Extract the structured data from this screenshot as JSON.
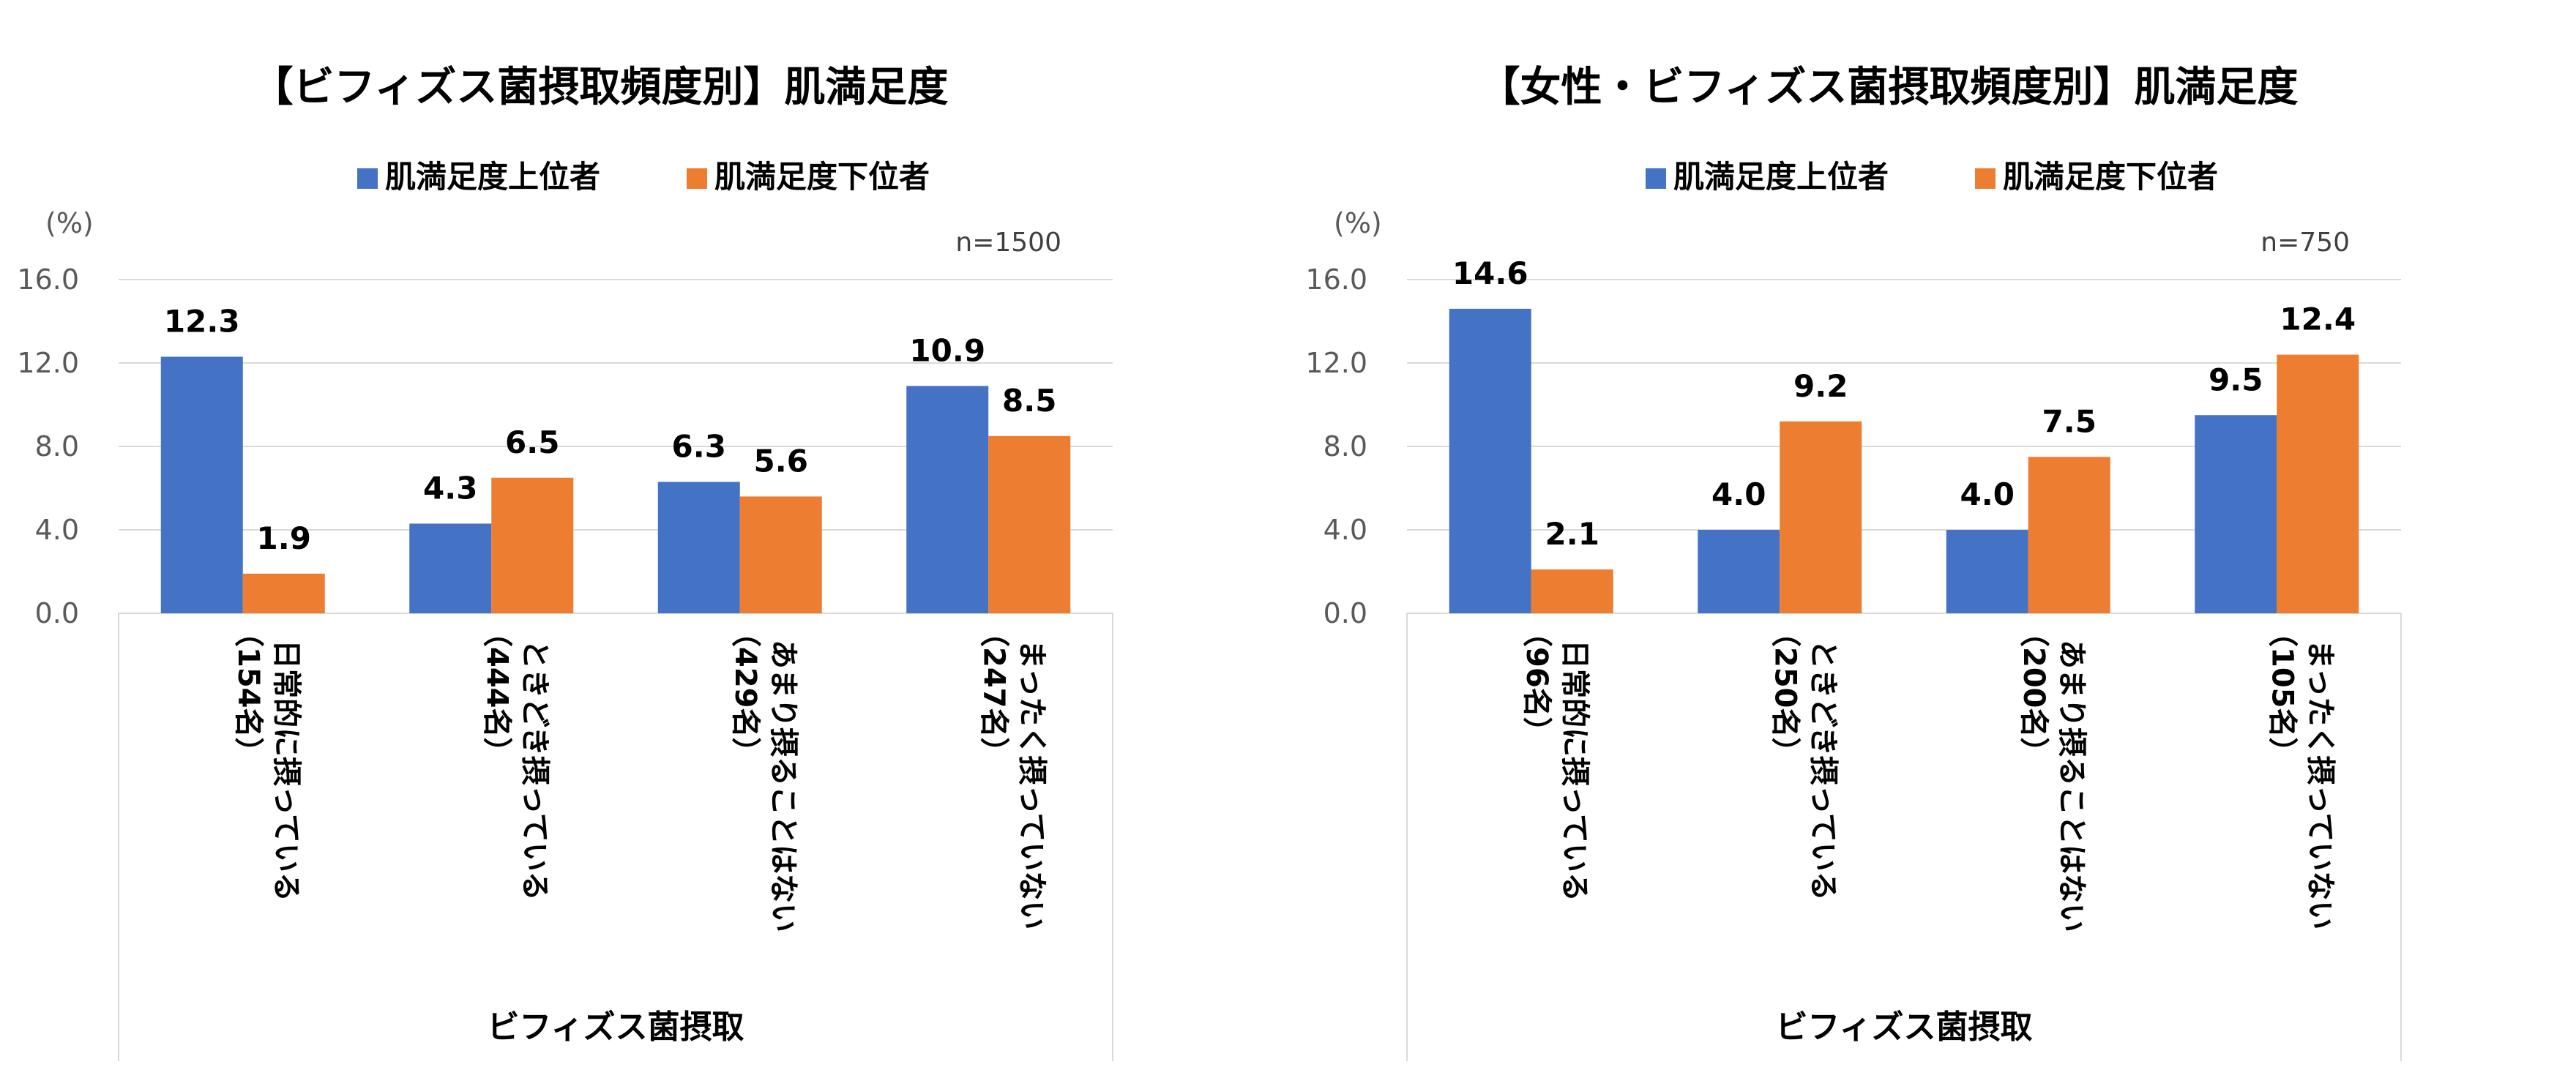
{
  "chart_data": [
    {
      "type": "bar",
      "title": "【ビフィズス菌摂取頻度別】肌満足度",
      "unit": "(%)",
      "note": "n=1500",
      "xlabel": "ビフィズス菌摂取",
      "ylim": [
        0,
        16
      ],
      "yticks": [
        "0.0",
        "4.0",
        "8.0",
        "12.0",
        "16.0"
      ],
      "grid": true,
      "legend_position": "top",
      "categories": [
        {
          "label": "日常的に摂っている",
          "count": "（154名）"
        },
        {
          "label": "ときどき摂っている",
          "count": "（444名）"
        },
        {
          "label": "あまり摂ることはない",
          "count": "（429名）"
        },
        {
          "label": "まったく摂っていない",
          "count": "（247名）"
        }
      ],
      "series": [
        {
          "name": "肌満足度上位者",
          "color": "#4472c4",
          "values": [
            12.3,
            4.3,
            6.3,
            10.9
          ]
        },
        {
          "name": "肌満足度下位者",
          "color": "#ed7d31",
          "values": [
            1.9,
            6.5,
            5.6,
            8.5
          ]
        }
      ]
    },
    {
      "type": "bar",
      "title": "【女性・ビフィズス菌摂取頻度別】肌満足度",
      "unit": "(%)",
      "note": "n=750",
      "xlabel": "ビフィズス菌摂取",
      "ylim": [
        0,
        16
      ],
      "yticks": [
        "0.0",
        "4.0",
        "8.0",
        "12.0",
        "16.0"
      ],
      "grid": true,
      "legend_position": "top",
      "categories": [
        {
          "label": "日常的に摂っている",
          "count": "（96名）"
        },
        {
          "label": "ときどき摂っている",
          "count": "（250名）"
        },
        {
          "label": "あまり摂ることはない",
          "count": "（200名）"
        },
        {
          "label": "まったく摂っていない",
          "count": "（105名）"
        }
      ],
      "series": [
        {
          "name": "肌満足度上位者",
          "color": "#4472c4",
          "values": [
            14.6,
            4.0,
            4.0,
            9.5
          ]
        },
        {
          "name": "肌満足度下位者",
          "color": "#ed7d31",
          "values": [
            2.1,
            9.2,
            7.5,
            12.4
          ]
        }
      ]
    }
  ]
}
